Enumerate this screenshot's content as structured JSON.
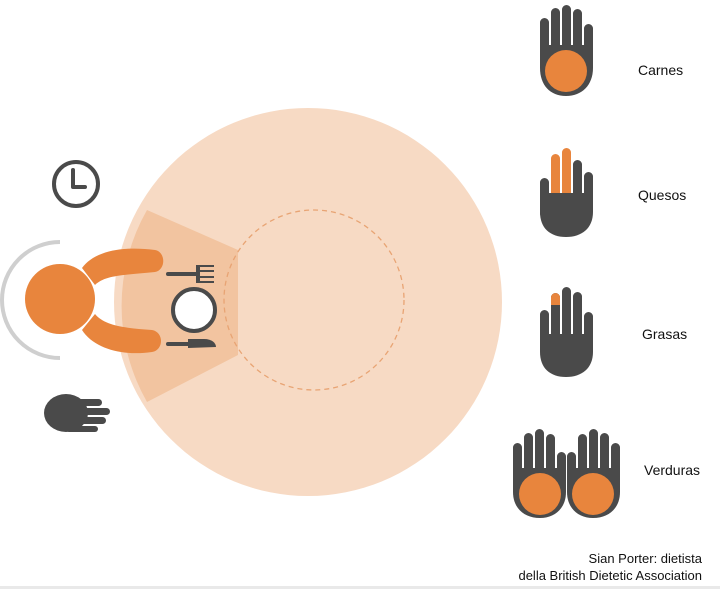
{
  "portions": [
    {
      "label": "Carnes",
      "hand": "palm-hand-icon",
      "highlight": "palm"
    },
    {
      "label": "Quesos",
      "hand": "two-fingers-hand-icon",
      "highlight": "two-fingers"
    },
    {
      "label": "Grasas",
      "hand": "fingertip-hand-icon",
      "highlight": "fingertip"
    },
    {
      "label": "Verduras",
      "hand": "two-palms-hands-icon",
      "highlight": "two-palms"
    }
  ],
  "credit": {
    "line1": "Sian Porter: dietista",
    "line2": "della British Dietetic Association"
  },
  "icons": {
    "clock": "clock-icon",
    "hand": "flat-hand-icon",
    "person": "person-top-view-icon",
    "plate": "plate-icon",
    "fork": "fork-icon",
    "knife": "knife-icon"
  },
  "colors": {
    "orange": "#E8853D",
    "dark": "#4A4A4A",
    "table": "#F7DAC4",
    "wedge": "#F2C4A0",
    "arc": "#CFCFCF"
  }
}
